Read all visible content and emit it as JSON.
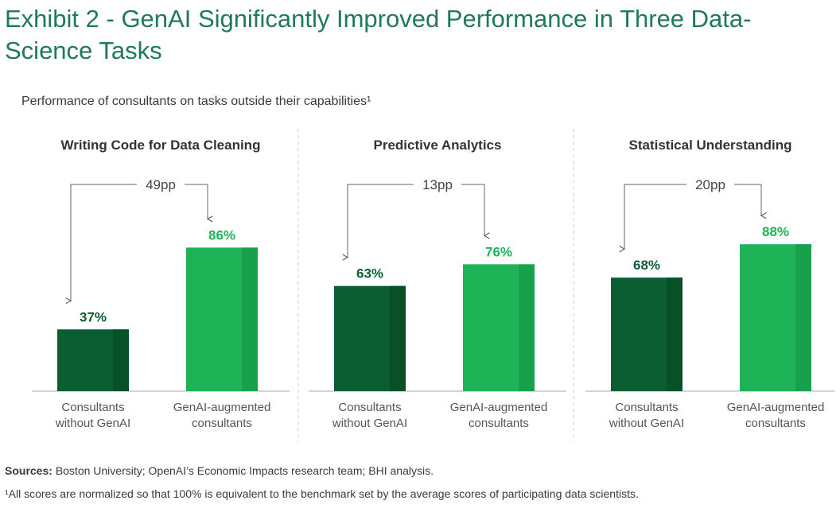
{
  "title": "Exhibit 2 - GenAI Significantly Improved Performance in Three Data-Science Tasks",
  "subtitle": "Performance of consultants on tasks outside their capabilities¹",
  "sources_label": "Sources:",
  "sources_text": "Boston University; OpenAI’s Economic Impacts research team; BHI analysis.",
  "note": "¹All scores are normalized so that 100% is equivalent to the benchmark set by the average scores of participating data scientists.",
  "colors": {
    "title": "#1e7a57",
    "without_genai_bar": "#0b5e32",
    "without_genai_shade": "#085028",
    "with_genai_bar": "#1db356",
    "with_genai_shade": "#18a04b",
    "without_genai_label": "#0b5e32",
    "with_genai_label": "#1db356"
  },
  "chart_data": [
    {
      "type": "bar",
      "title": "Writing Code for Data Cleaning",
      "categories": [
        "Consultants without GenAI",
        "GenAI-augmented consultants"
      ],
      "category_lines": [
        [
          "Consultants",
          "without GenAI"
        ],
        [
          "GenAI-augmented",
          "consultants"
        ]
      ],
      "values": [
        37,
        86
      ],
      "value_labels": [
        "37%",
        "86%"
      ],
      "difference_label": "49pp",
      "ylim": [
        0,
        100
      ]
    },
    {
      "type": "bar",
      "title": "Predictive Analytics",
      "categories": [
        "Consultants without GenAI",
        "GenAI-augmented consultants"
      ],
      "category_lines": [
        [
          "Consultants",
          "without GenAI"
        ],
        [
          "GenAI-augmented",
          "consultants"
        ]
      ],
      "values": [
        63,
        76
      ],
      "value_labels": [
        "63%",
        "76%"
      ],
      "difference_label": "13pp",
      "ylim": [
        0,
        100
      ]
    },
    {
      "type": "bar",
      "title": "Statistical Understanding",
      "categories": [
        "Consultants without GenAI",
        "GenAI-augmented consultants"
      ],
      "category_lines": [
        [
          "Consultants",
          "without GenAI"
        ],
        [
          "GenAI-augmented",
          "consultants"
        ]
      ],
      "values": [
        68,
        88
      ],
      "value_labels": [
        "68%",
        "88%"
      ],
      "difference_label": "20pp",
      "ylim": [
        0,
        100
      ]
    }
  ]
}
